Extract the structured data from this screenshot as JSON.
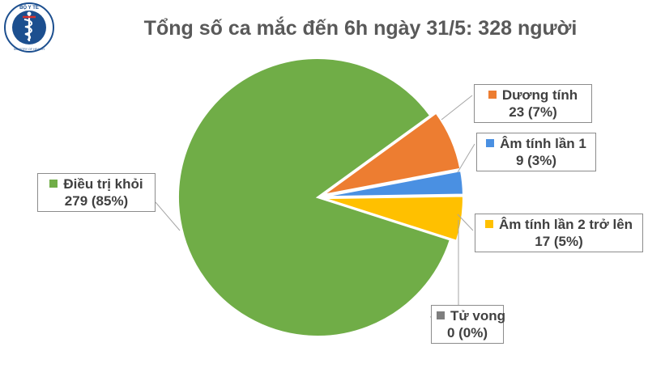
{
  "title": "Tổng số ca mắc đến 6h ngày 31/5: 328 người",
  "logo": {
    "icon": "ministry-of-health-emblem-icon",
    "top_text": "BỘ Y TẾ",
    "bottom_text": "MINISTRY OF HEALTH",
    "color": "#1c4f8f"
  },
  "chart_data": {
    "type": "pie",
    "title": "Tổng số ca mắc đến 6h ngày 31/5: 328 người",
    "total": 328,
    "start_direction": "counter-clockwise from top",
    "slices": [
      {
        "name": "Dương tính",
        "value": 23,
        "percent_label": "23 (7%)",
        "color": "#ed7d31",
        "exploded": true
      },
      {
        "name": "Âm tính lần 1",
        "value": 9,
        "percent_label": "9 (3%)",
        "color": "#4a90e2",
        "exploded": true
      },
      {
        "name": "Âm tính lần 2 trở lên",
        "value": 17,
        "percent_label": "17 (5%)",
        "color": "#ffc000",
        "exploded": true
      },
      {
        "name": "Tử vong",
        "value": 0,
        "percent_label": "0 (0%)",
        "color": "#7f7f7f",
        "exploded": false
      },
      {
        "name": "Điều trị khỏi",
        "value": 279,
        "percent_label": "279 (85%)",
        "color": "#70ad47",
        "exploded": false
      }
    ]
  }
}
